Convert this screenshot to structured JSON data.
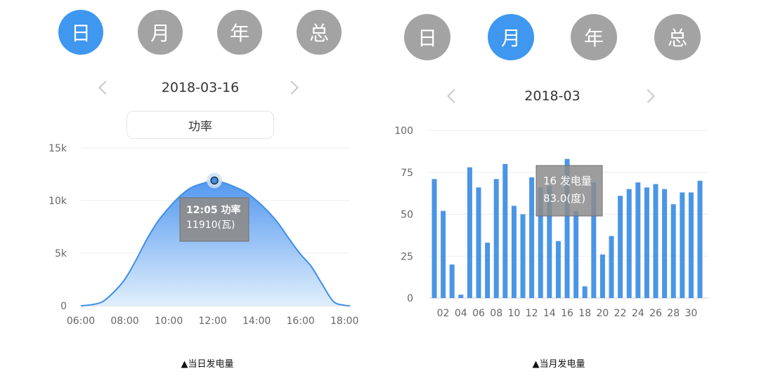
{
  "left": {
    "tabs": [
      {
        "label": "日",
        "active": true
      },
      {
        "label": "月",
        "active": false
      },
      {
        "label": "年",
        "active": false
      },
      {
        "label": "总",
        "active": false
      }
    ],
    "date": "2018-03-16",
    "metric_button": "功率",
    "tooltip": {
      "line1": "12:05 功率",
      "line2": "11910(瓦)"
    },
    "caption": "▲当日发电量"
  },
  "right": {
    "tabs": [
      {
        "label": "日",
        "active": false
      },
      {
        "label": "月",
        "active": true
      },
      {
        "label": "年",
        "active": false
      },
      {
        "label": "总",
        "active": false
      }
    ],
    "date": "2018-03",
    "tooltip": {
      "line1": "16 发电量",
      "line2": "83.0(度)"
    },
    "caption": "▲当月发电量"
  },
  "colors": {
    "active_tab": "#3f97ef",
    "inactive_tab": "#a3a3a3",
    "line": "#3f8fe8",
    "bar": "#4a95e6",
    "tooltip_bg": "#8c8c8c"
  },
  "chart_data": [
    {
      "type": "area",
      "title": "",
      "x_tick_labels": [
        "06:00",
        "08:00",
        "10:00",
        "12:00",
        "14:00",
        "16:00",
        "18:00"
      ],
      "y_tick_labels": [
        "0",
        "5k",
        "10k",
        "15k"
      ],
      "ylim": [
        0,
        15000
      ],
      "xlim_hours": [
        6,
        18.25
      ],
      "grid": true,
      "highlight": {
        "x": 12.08,
        "y": 11910
      },
      "x": [
        6,
        6.5,
        7,
        7.5,
        8,
        8.5,
        9,
        9.5,
        10,
        10.5,
        11,
        11.5,
        12,
        12.5,
        13,
        13.5,
        14,
        14.5,
        15,
        15.5,
        16,
        16.5,
        17,
        17.5,
        18,
        18.25
      ],
      "values": [
        0,
        100,
        400,
        1300,
        2500,
        4300,
        6300,
        8000,
        9300,
        10400,
        11200,
        11600,
        11850,
        11700,
        11300,
        10800,
        10000,
        9000,
        7800,
        6300,
        4900,
        3700,
        2000,
        400,
        50,
        0
      ]
    },
    {
      "type": "bar",
      "title": "",
      "categories": [
        "01",
        "02",
        "03",
        "04",
        "05",
        "06",
        "07",
        "08",
        "09",
        "10",
        "11",
        "12",
        "13",
        "14",
        "15",
        "16",
        "17",
        "18",
        "19",
        "20",
        "21",
        "22",
        "23",
        "24",
        "25",
        "26",
        "27",
        "28",
        "29",
        "30",
        "31"
      ],
      "x_tick_labels": [
        "02",
        "04",
        "06",
        "08",
        "10",
        "12",
        "14",
        "16",
        "18",
        "20",
        "22",
        "24",
        "26",
        "28",
        "30"
      ],
      "y_tick_labels": [
        "0",
        "25",
        "50",
        "75",
        "100"
      ],
      "ylim": [
        0,
        100
      ],
      "grid": true,
      "highlight_index": 15,
      "values": [
        71,
        52,
        20,
        2,
        78,
        66,
        33,
        71,
        80,
        55,
        50,
        72,
        66,
        67,
        34,
        83,
        52,
        7,
        69,
        26,
        37,
        61,
        65,
        69,
        66,
        68,
        65,
        56,
        63,
        63,
        70
      ]
    }
  ]
}
